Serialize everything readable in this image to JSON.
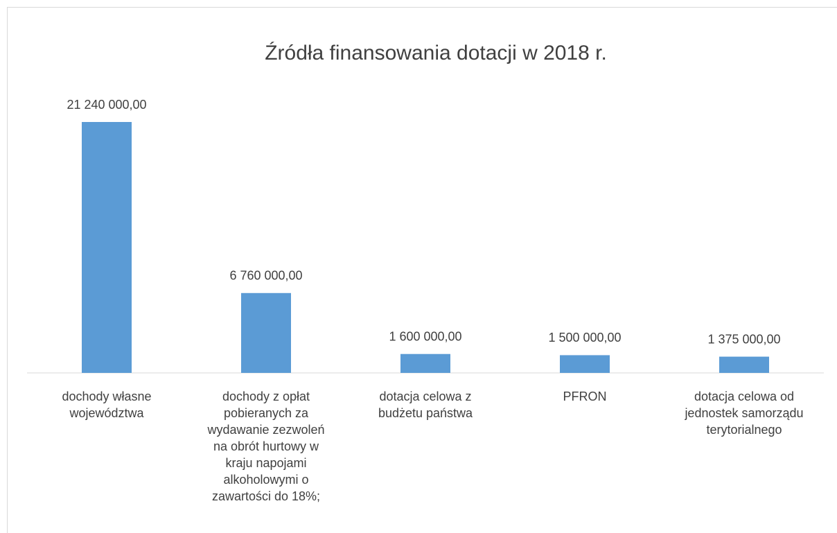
{
  "chart_data": {
    "type": "bar",
    "title": "Źródła finansowania dotacji w 2018 r.",
    "categories": [
      "dochody własne województwa",
      "dochody z opłat pobieranych za wydawanie zezwoleń na obrót hurtowy w kraju napojami alkoholowymi o zawartości do 18%;",
      "dotacja celowa z budżetu państwa",
      "PFRON",
      "dotacja celowa od jednostek samorządu terytorialnego"
    ],
    "values": [
      21240000,
      6760000,
      1600000,
      1500000,
      1375000
    ],
    "value_labels": [
      "21 240 000,00",
      "6 760 000,00",
      "1 600 000,00",
      "1 500 000,00",
      "1 375 000,00"
    ],
    "color": "#5b9bd5"
  }
}
